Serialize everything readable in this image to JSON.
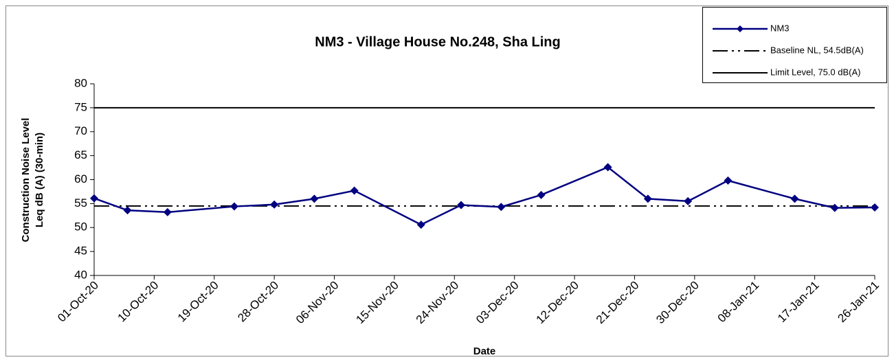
{
  "chart_data": {
    "type": "line",
    "title": "NM3 - Village House No.248, Sha Ling",
    "x_label": "Date",
    "y_label": [
      "Construction Noise Level",
      "Leq dB (A) (30-min)"
    ],
    "xlim": [
      "01-Oct-20",
      "26-Jan-21"
    ],
    "xticks": [
      "01-Oct-20",
      "10-Oct-20",
      "19-Oct-20",
      "28-Oct-20",
      "06-Nov-20",
      "15-Nov-20",
      "24-Nov-20",
      "03-Dec-20",
      "12-Dec-20",
      "21-Dec-20",
      "30-Dec-20",
      "08-Jan-21",
      "17-Jan-21",
      "26-Jan-21"
    ],
    "ylim": [
      40,
      80
    ],
    "yticks": [
      40,
      45,
      50,
      55,
      60,
      65,
      70,
      75,
      80
    ],
    "grid": false,
    "legend": "top-right",
    "series": [
      {
        "name": "NM3",
        "color": "#000080",
        "x": [
          "01-Oct-20",
          "06-Oct-20",
          "12-Oct-20",
          "22-Oct-20",
          "28-Oct-20",
          "03-Nov-20",
          "09-Nov-20",
          "19-Nov-20",
          "25-Nov-20",
          "01-Dec-20",
          "07-Dec-20",
          "17-Dec-20",
          "23-Dec-20",
          "29-Dec-20",
          "04-Jan-21",
          "14-Jan-21",
          "20-Jan-21",
          "26-Jan-21"
        ],
        "values": [
          56.1,
          53.6,
          53.2,
          54.4,
          54.8,
          56.0,
          57.7,
          50.6,
          54.7,
          54.3,
          56.8,
          62.6,
          56.0,
          55.5,
          59.8,
          56.0,
          54.1,
          54.2
        ]
      }
    ],
    "reference_lines": [
      {
        "name": "Baseline NL,  54.5dB(A)",
        "value": 54.5,
        "color": "#000000",
        "style": "dash-dot-dot"
      },
      {
        "name": "Limit Level, 75.0 dB(A)",
        "value": 75.0,
        "color": "#000000",
        "style": "solid"
      }
    ]
  }
}
